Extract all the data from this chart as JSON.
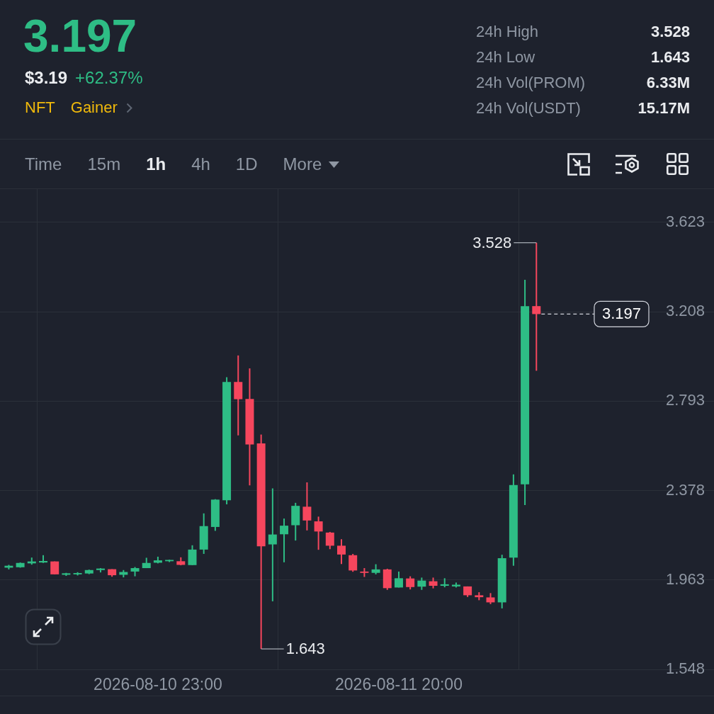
{
  "chart_data": {
    "type": "candlestick",
    "title": "3.197",
    "subtitle": "$3.19",
    "annotations": [
      "+62.37%",
      "NFT",
      "Gainer",
      "24h High",
      "3.528",
      "24h Low",
      "1.643",
      "24h Vol(PROM)",
      "6.33M",
      "24h Vol(USDT)",
      "15.17M",
      "Time",
      "15m",
      "1h",
      "4h",
      "1D",
      "More",
      {
        "text": "3.528",
        "x": "2026-08-12T08:00",
        "y": 3.528
      },
      {
        "text": "1.643",
        "x": "2026-08-11T08:00",
        "y": 1.643
      }
    ],
    "x": [
      "2026-08-10T10:00",
      "2026-08-10T11:00",
      "2026-08-10T12:00",
      "2026-08-10T13:00",
      "2026-08-10T14:00",
      "2026-08-10T15:00",
      "2026-08-10T16:00",
      "2026-08-10T17:00",
      "2026-08-10T18:00",
      "2026-08-10T19:00",
      "2026-08-10T20:00",
      "2026-08-10T21:00",
      "2026-08-10T22:00",
      "2026-08-10T23:00",
      "2026-08-11T00:00",
      "2026-08-11T01:00",
      "2026-08-11T02:00",
      "2026-08-11T03:00",
      "2026-08-11T04:00",
      "2026-08-11T05:00",
      "2026-08-11T06:00",
      "2026-08-11T07:00",
      "2026-08-11T08:00",
      "2026-08-11T09:00",
      "2026-08-11T10:00",
      "2026-08-11T11:00",
      "2026-08-11T12:00",
      "2026-08-11T13:00",
      "2026-08-11T14:00",
      "2026-08-11T15:00",
      "2026-08-11T16:00",
      "2026-08-11T17:00",
      "2026-08-11T18:00",
      "2026-08-11T19:00",
      "2026-08-11T20:00",
      "2026-08-11T21:00",
      "2026-08-11T22:00",
      "2026-08-11T23:00",
      "2026-08-12T00:00",
      "2026-08-12T01:00",
      "2026-08-12T02:00",
      "2026-08-12T03:00",
      "2026-08-12T04:00",
      "2026-08-12T05:00",
      "2026-08-12T06:00",
      "2026-08-12T07:00",
      "2026-08-12T08:00"
    ],
    "ohlc": [
      [
        2.02,
        2.033,
        2.012,
        2.029
      ],
      [
        2.022,
        2.044,
        2.02,
        2.042
      ],
      [
        2.04,
        2.067,
        2.034,
        2.049
      ],
      [
        2.044,
        2.078,
        2.042,
        2.051
      ],
      [
        2.049,
        2.049,
        1.989,
        1.989
      ],
      [
        1.987,
        1.996,
        1.982,
        1.994
      ],
      [
        1.989,
        1.999,
        1.984,
        1.995
      ],
      [
        1.993,
        2.011,
        1.99,
        2.009
      ],
      [
        2.009,
        2.018,
        1.998,
        2.016
      ],
      [
        2.013,
        2.013,
        1.978,
        1.985
      ],
      [
        1.987,
        2.009,
        1.975,
        2.0
      ],
      [
        2.002,
        2.023,
        1.98,
        2.018
      ],
      [
        2.018,
        2.066,
        2.018,
        2.042
      ],
      [
        2.043,
        2.071,
        2.04,
        2.054
      ],
      [
        2.05,
        2.057,
        2.046,
        2.056
      ],
      [
        2.05,
        2.068,
        2.031,
        2.033
      ],
      [
        2.032,
        2.124,
        2.032,
        2.104
      ],
      [
        2.104,
        2.272,
        2.084,
        2.213
      ],
      [
        2.209,
        2.338,
        2.191,
        2.336
      ],
      [
        2.333,
        2.904,
        2.314,
        2.882
      ],
      [
        2.882,
        3.005,
        2.634,
        2.802
      ],
      [
        2.803,
        2.945,
        2.402,
        2.592
      ],
      [
        2.597,
        2.638,
        1.643,
        2.119
      ],
      [
        2.128,
        2.388,
        1.864,
        2.174
      ],
      [
        2.175,
        2.248,
        2.045,
        2.215
      ],
      [
        2.217,
        2.321,
        2.146,
        2.307
      ],
      [
        2.303,
        2.416,
        2.193,
        2.239
      ],
      [
        2.235,
        2.257,
        2.103,
        2.188
      ],
      [
        2.183,
        2.186,
        2.106,
        2.122
      ],
      [
        2.122,
        2.152,
        2.037,
        2.081
      ],
      [
        2.078,
        2.084,
        2.001,
        2.007
      ],
      [
        2.002,
        2.018,
        1.977,
        1.996
      ],
      [
        1.996,
        2.036,
        1.989,
        2.012
      ],
      [
        2.012,
        2.015,
        1.917,
        1.925
      ],
      [
        1.928,
        2.002,
        1.928,
        1.971
      ],
      [
        1.97,
        1.98,
        1.919,
        1.93
      ],
      [
        1.932,
        1.974,
        1.917,
        1.96
      ],
      [
        1.957,
        1.974,
        1.924,
        1.936
      ],
      [
        1.936,
        1.971,
        1.929,
        1.943
      ],
      [
        1.933,
        1.951,
        1.928,
        1.941
      ],
      [
        1.933,
        1.933,
        1.884,
        1.892
      ],
      [
        1.892,
        1.906,
        1.869,
        1.883
      ],
      [
        1.882,
        1.902,
        1.851,
        1.859
      ],
      [
        1.859,
        2.08,
        1.831,
        2.064
      ],
      [
        2.067,
        2.453,
        2.029,
        2.404
      ],
      [
        2.407,
        3.356,
        2.311,
        3.234
      ],
      [
        3.234,
        3.528,
        2.934,
        3.197
      ]
    ],
    "colors": [
      "#2ebd85",
      "#2ebd85",
      "#2ebd85",
      "#2ebd85",
      "#f6465d",
      "#2ebd85",
      "#2ebd85",
      "#2ebd85",
      "#2ebd85",
      "#f6465d",
      "#2ebd85",
      "#2ebd85",
      "#2ebd85",
      "#2ebd85",
      "#2ebd85",
      "#f6465d",
      "#2ebd85",
      "#2ebd85",
      "#2ebd85",
      "#2ebd85",
      "#f6465d",
      "#f6465d",
      "#f6465d",
      "#2ebd85",
      "#2ebd85",
      "#2ebd85",
      "#f6465d",
      "#f6465d",
      "#f6465d",
      "#f6465d",
      "#f6465d",
      "#f6465d",
      "#2ebd85",
      "#f6465d",
      "#2ebd85",
      "#f6465d",
      "#2ebd85",
      "#f6465d",
      "#2ebd85",
      "#2ebd85",
      "#f6465d",
      "#f6465d",
      "#f6465d",
      "#2ebd85",
      "#2ebd85",
      "#2ebd85",
      "#f6465d"
    ],
    "xlim": [
      "2026-08-10T09:14",
      "2026-08-12T23:29"
    ],
    "xticks": [
      {
        "value": "2026-08-10T23:00",
        "label": "2026-08-10 23:00"
      },
      {
        "value": "2026-08-11T20:00",
        "label": "2026-08-11 20:00"
      }
    ],
    "ylim": [
      1.548,
      3.777
    ],
    "yticks": [
      1.548,
      1.963,
      2.378,
      2.793,
      3.208,
      3.623
    ],
    "grid": true,
    "ref_lines": [
      {
        "axis": "y",
        "value": 3.197,
        "label": "3.197",
        "line_style": "dashed",
        "color": "#d1d4dc"
      }
    ]
  }
}
